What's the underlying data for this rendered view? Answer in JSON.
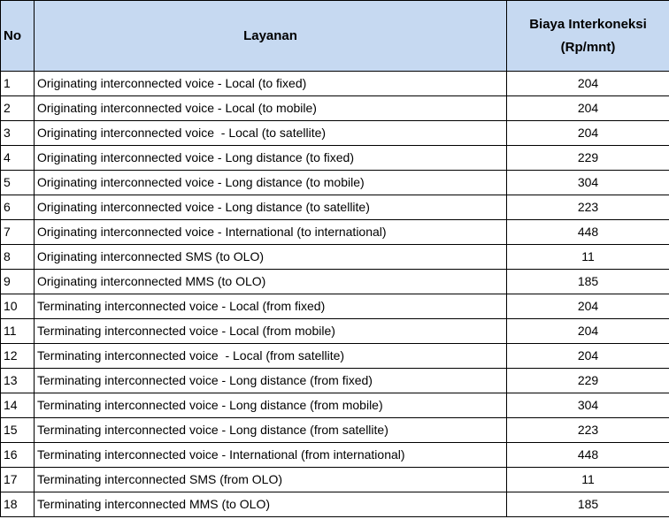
{
  "table": {
    "header": [
      "No",
      "Layanan",
      "Biaya Interkoneksi (Rp/mnt)"
    ],
    "rows": [
      [
        "1",
        "Originating interconnected voice - Local (to fixed)",
        "204"
      ],
      [
        "2",
        "Originating interconnected voice - Local (to mobile)",
        "204"
      ],
      [
        "3",
        "Originating interconnected voice  - Local (to satellite)",
        "204"
      ],
      [
        "4",
        "Originating interconnected voice - Long distance (to fixed)",
        "229"
      ],
      [
        "5",
        "Originating interconnected voice - Long distance (to mobile)",
        "304"
      ],
      [
        "6",
        "Originating interconnected voice - Long distance (to satellite)",
        "223"
      ],
      [
        "7",
        "Originating interconnected voice - International (to international)",
        "448"
      ],
      [
        "8",
        "Originating interconnected SMS (to OLO)",
        "11"
      ],
      [
        "9",
        "Originating interconnected MMS (to OLO)",
        "185"
      ],
      [
        "10",
        "Terminating interconnected voice - Local (from fixed)",
        "204"
      ],
      [
        "11",
        "Terminating interconnected voice - Local (from mobile)",
        "204"
      ],
      [
        "12",
        "Terminating interconnected voice  - Local (from satellite)",
        "204"
      ],
      [
        "13",
        "Terminating interconnected voice - Long distance (from fixed)",
        "229"
      ],
      [
        "14",
        "Terminating interconnected voice - Long distance (from mobile)",
        "304"
      ],
      [
        "15",
        "Terminating interconnected voice - Long distance (from satellite)",
        "223"
      ],
      [
        "16",
        "Terminating interconnected voice - International (from international)",
        "448"
      ],
      [
        "17",
        "Terminating interconnected SMS (from OLO)",
        "11"
      ],
      [
        "18",
        "Terminating interconnected MMS (to OLO)",
        "185"
      ]
    ]
  }
}
